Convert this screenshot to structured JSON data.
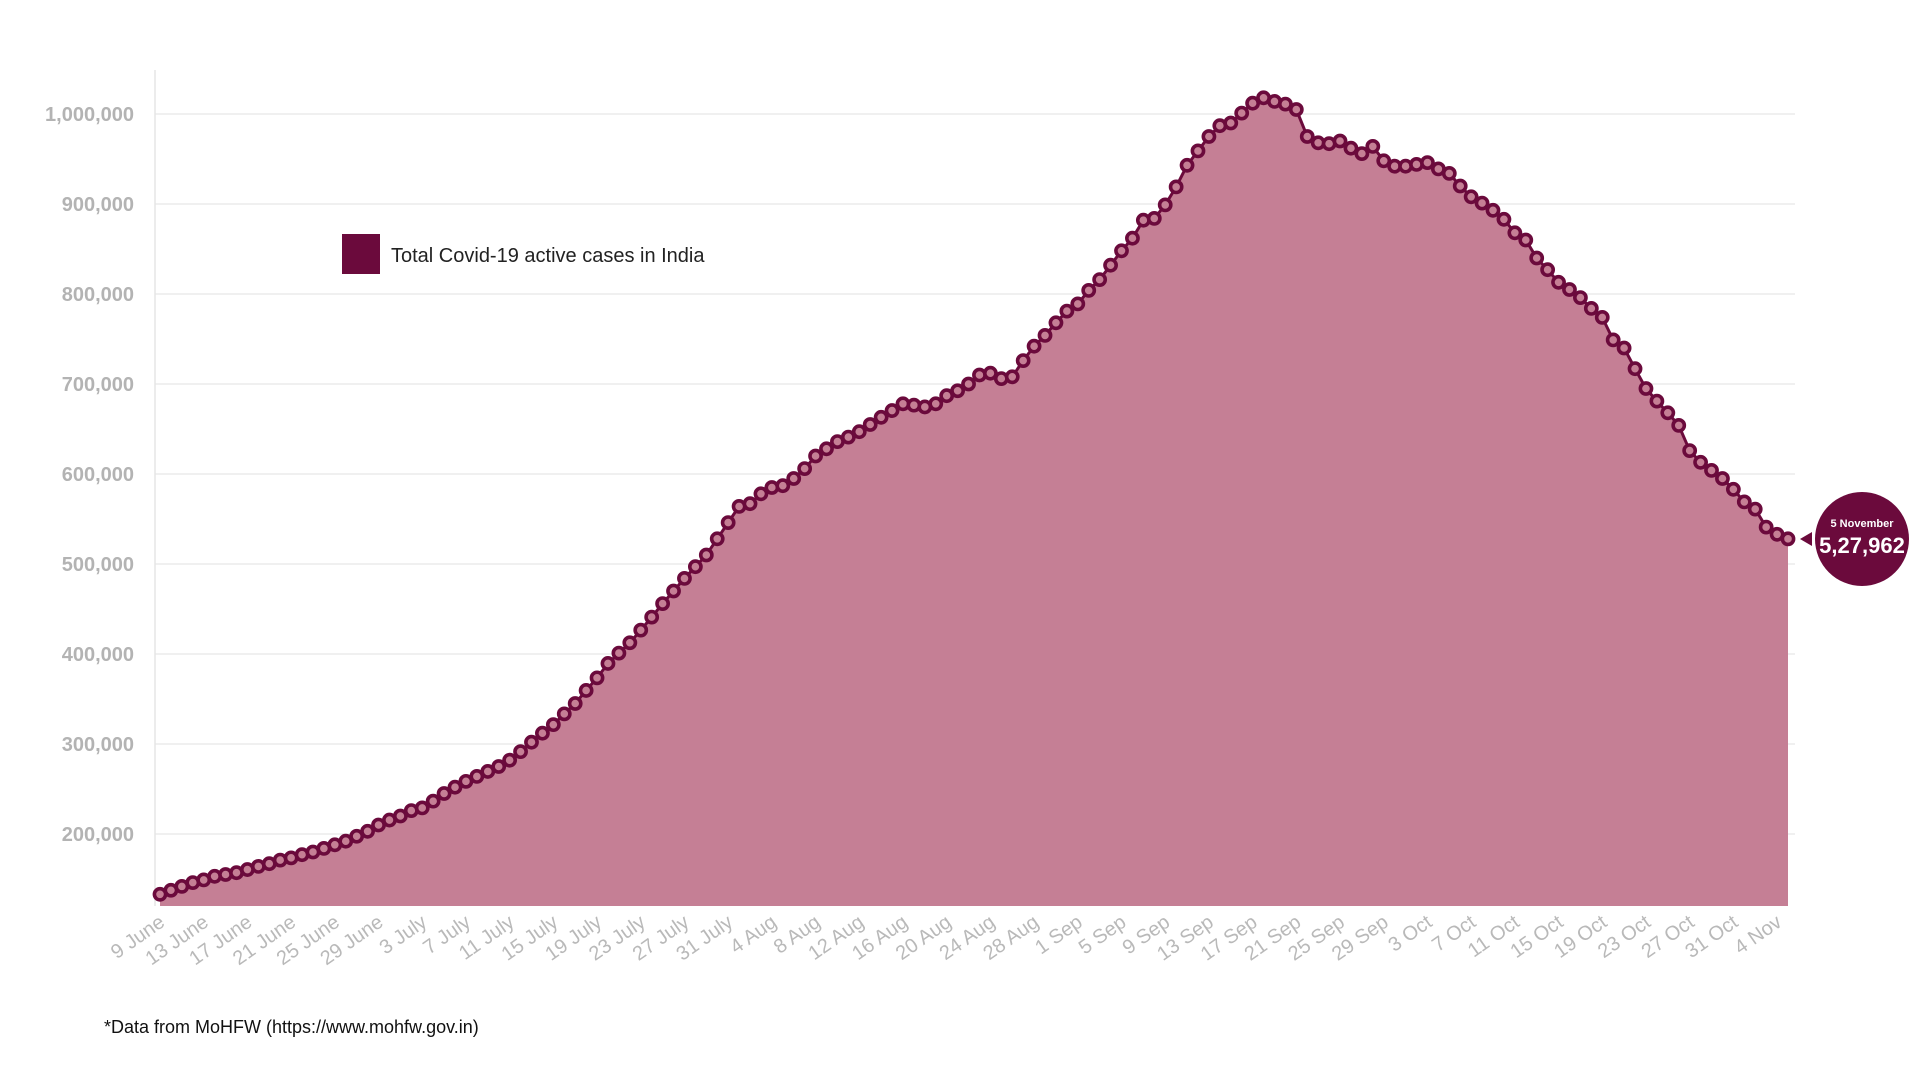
{
  "colors": {
    "area_fill": "#c57f95",
    "line": "#6b0a3c",
    "marker_outer": "#6b0a3c",
    "marker_inner": "#c57f95",
    "grid": "#e6e6e6",
    "axis_text": "#b3b3b3"
  },
  "legend": {
    "label": "Total Covid-19 active cases in India",
    "placement": "top-left"
  },
  "source": "*Data from MoHFW (https://www.mohfw.gov.in)",
  "callout": {
    "date": "5 November",
    "value": "5,27,962"
  },
  "chart_data": {
    "type": "area",
    "title": "",
    "xlabel": "",
    "ylabel": "",
    "ylim": [
      120000,
      1050000
    ],
    "grid": true,
    "yticks": [
      200000,
      300000,
      400000,
      500000,
      600000,
      700000,
      800000,
      900000,
      1000000
    ],
    "ytick_labels": [
      "200,000",
      "300,000",
      "400,000",
      "500,000",
      "600,000",
      "700,000",
      "800,000",
      "900,000",
      "1,000,000"
    ],
    "x_start": "9 June",
    "x_end": "5 November",
    "xtick_labels": [
      "9 June",
      "13 June",
      "17 June",
      "21 June",
      "25 June",
      "29 June",
      "3 July",
      "7 July",
      "11 July",
      "15 July",
      "19 July",
      "23 July",
      "27 July",
      "31 July",
      "4 Aug",
      "8 Aug",
      "12 Aug",
      "16 Aug",
      "20 Aug",
      "24 Aug",
      "28 Aug",
      "1 Sep",
      "5 Sep",
      "9 Sep",
      "13 Sep",
      "17 Sep",
      "21 Sep",
      "25 Sep",
      "29 Sep",
      "3 Oct",
      "7 Oct",
      "11 Oct",
      "15 Oct",
      "19 Oct",
      "23 Oct",
      "27 Oct",
      "31 Oct",
      "4 Nov"
    ],
    "series": [
      {
        "values": [
          133000,
          137500,
          141800,
          146000,
          149000,
          153000,
          155000,
          157000,
          160500,
          164000,
          167000,
          171000,
          173500,
          177000,
          180000,
          184000,
          188000,
          192000,
          197500,
          203000,
          210000,
          215500,
          220000,
          226000,
          229000,
          236500,
          245000,
          252000,
          258500,
          264000,
          269500,
          275000,
          282000,
          291500,
          302000,
          312000,
          321500,
          333500,
          345000,
          359500,
          373500,
          389500,
          401000,
          412500,
          426500,
          441000,
          456000,
          470000,
          484000,
          497000,
          510000,
          528000,
          546000,
          564000,
          567000,
          578000,
          585000,
          587000,
          595000,
          606000,
          620000,
          628000,
          636000,
          641000,
          647000,
          655000,
          663000,
          670500,
          678000,
          676500,
          674500,
          678000,
          687000,
          692500,
          700000,
          710000,
          712000,
          706000,
          708000,
          726000,
          742000,
          754000,
          768000,
          781000,
          789000,
          804000,
          816000,
          832000,
          848000,
          862000,
          882000,
          884000,
          899000,
          919000,
          943000,
          959000,
          975000,
          987000,
          990000,
          1001000,
          1012000,
          1018000,
          1014000,
          1011000,
          1005000,
          975000,
          968000,
          967000,
          970000,
          962000,
          956000,
          964000,
          948000,
          942000,
          942000,
          944000,
          946000,
          939000,
          934000,
          920000,
          908000,
          901000,
          893000,
          883000,
          868000,
          860000,
          840000,
          827000,
          813000,
          805000,
          796000,
          784000,
          774000,
          749000,
          740000,
          717000,
          695000,
          681000,
          668000,
          654000,
          626000,
          613000,
          604000,
          595000,
          583000,
          569000,
          561000,
          541000,
          533000,
          527962
        ]
      }
    ]
  }
}
